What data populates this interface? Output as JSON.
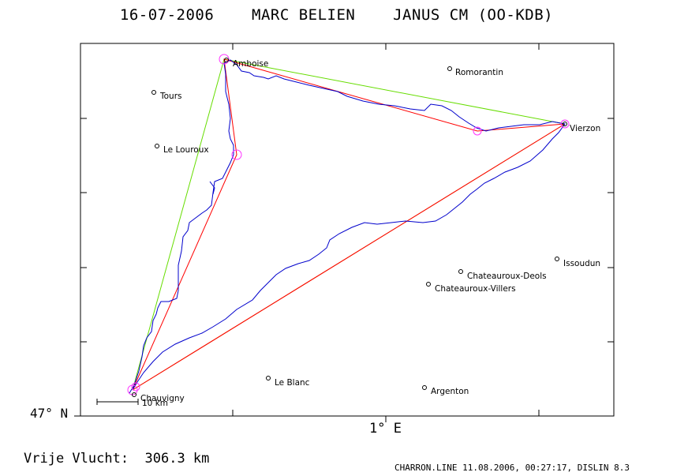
{
  "title": "16-07-2006    MARC BELIEN    JANUS CM (OO-KDB)",
  "axis": {
    "lat_label": "47° N",
    "lon_label": "1° E"
  },
  "scale_bar": {
    "label": "10 km"
  },
  "distance_text": "Vrije Vlucht:  306.3 km",
  "footer": "CHARRON.LINE 11.08.2006, 00:27:17, DISLIN 8.3",
  "cities": [
    {
      "id": "amboise",
      "name": "Amboise"
    },
    {
      "id": "romorantin",
      "name": "Romorantin"
    },
    {
      "id": "tours",
      "name": "Tours"
    },
    {
      "id": "le-louroux",
      "name": "Le Louroux"
    },
    {
      "id": "vierzon",
      "name": "Vierzon"
    },
    {
      "id": "issoudun",
      "name": "Issoudun"
    },
    {
      "id": "chateauroux-deols",
      "name": "Chateauroux-Deols"
    },
    {
      "id": "chateauroux-villers",
      "name": "Chateauroux-Villers"
    },
    {
      "id": "le-blanc",
      "name": "Le Blanc"
    },
    {
      "id": "argenton",
      "name": "Argenton"
    },
    {
      "id": "chauvigny",
      "name": "Chauvigny"
    }
  ],
  "colors": {
    "track": "#0000cc",
    "route_red": "#ff0000",
    "route_green": "#66dd00",
    "route_orange": "#c08000",
    "turnpoint": "#ff33ff",
    "frame": "#000000"
  }
}
